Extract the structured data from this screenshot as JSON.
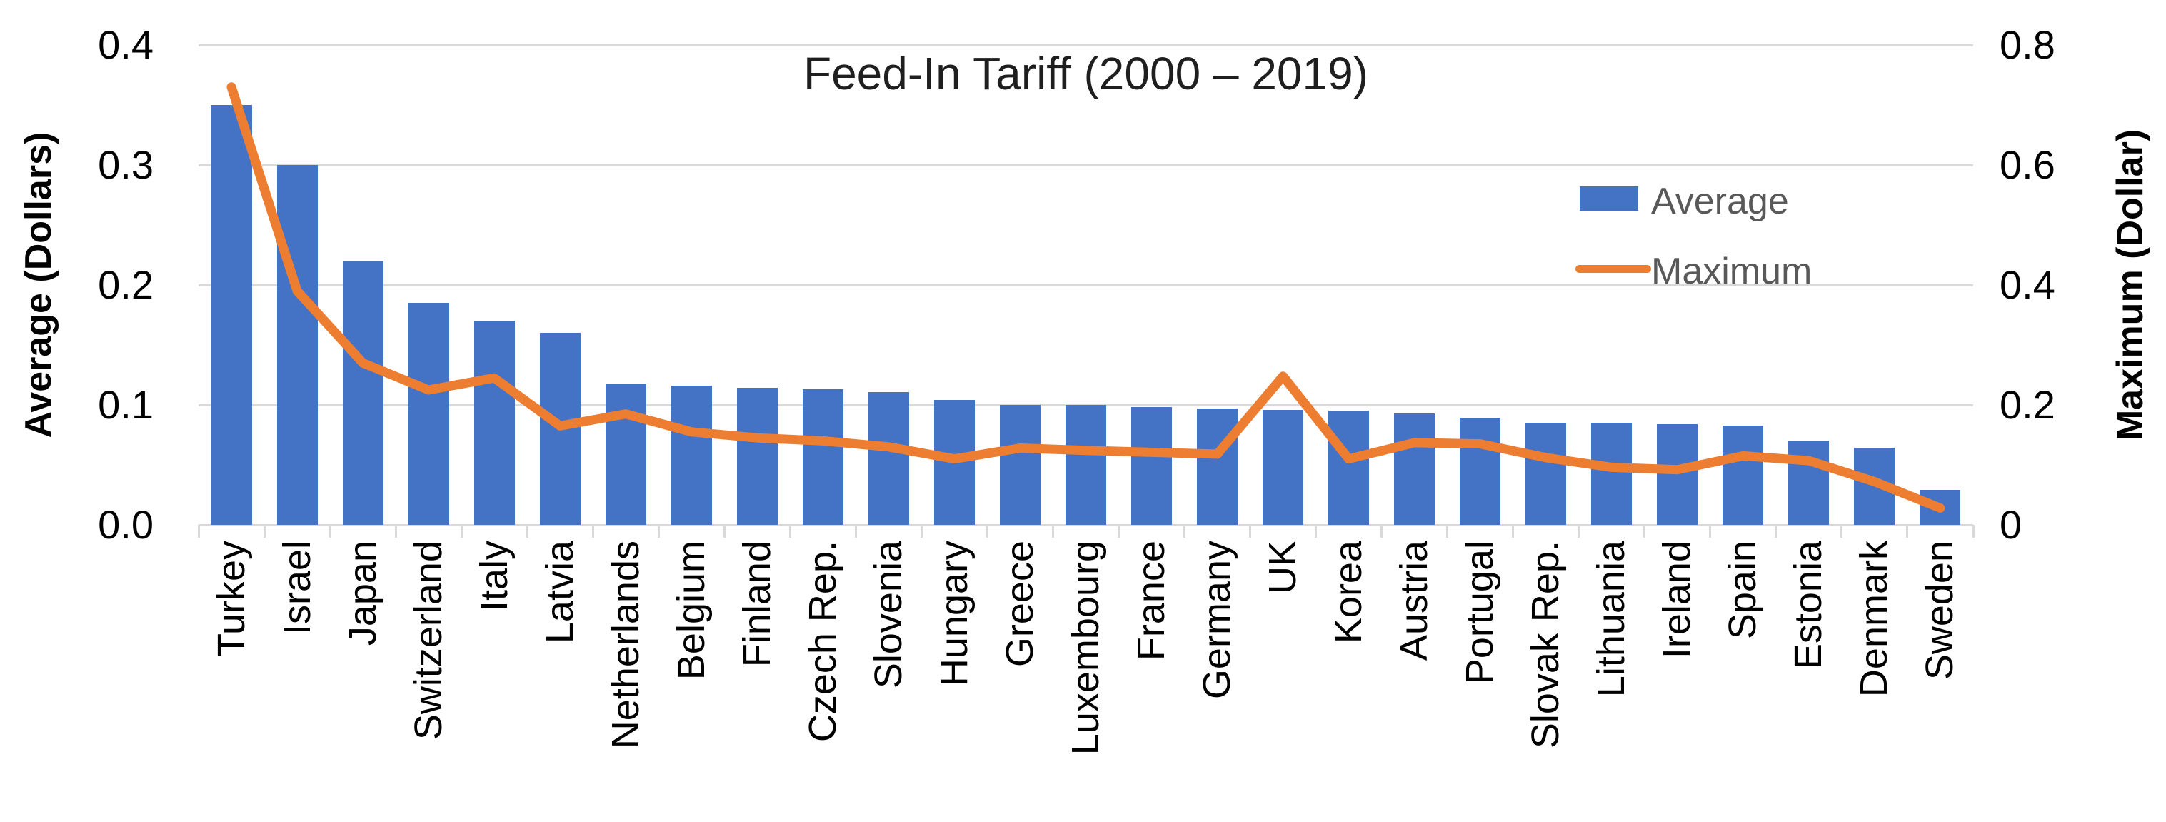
{
  "chart_data": {
    "type": "combo-bar-line",
    "title": "Feed-In Tariff (2000 – 2019)",
    "categories": [
      "Turkey",
      "Israel",
      "Japan",
      "Switzerland",
      "Italy",
      "Latvia",
      "Netherlands",
      "Belgium",
      "Finland",
      "Czech Rep.",
      "Slovenia",
      "Hungary",
      "Greece",
      "Luxembourg",
      "France",
      "Germany",
      "UK",
      "Korea",
      "Austria",
      "Portugal",
      "Slovak Rep.",
      "Lithuania",
      "Ireland",
      "Spain",
      "Estonia",
      "Denmark",
      "Sweden"
    ],
    "series": [
      {
        "name": "Average",
        "type": "bar",
        "y_axis": "left",
        "color": "#4472C4",
        "values": [
          0.35,
          0.3,
          0.22,
          0.185,
          0.17,
          0.16,
          0.118,
          0.116,
          0.114,
          0.113,
          0.111,
          0.104,
          0.1,
          0.1,
          0.098,
          0.097,
          0.096,
          0.095,
          0.093,
          0.089,
          0.085,
          0.085,
          0.084,
          0.083,
          0.07,
          0.064,
          0.029
        ]
      },
      {
        "name": "Maximum",
        "type": "line",
        "y_axis": "right",
        "color": "#ED7D31",
        "values": [
          0.73,
          0.39,
          0.27,
          0.225,
          0.245,
          0.165,
          0.185,
          0.155,
          0.145,
          0.14,
          0.13,
          0.11,
          0.128,
          0.124,
          0.121,
          0.118,
          0.248,
          0.11,
          0.137,
          0.135,
          0.112,
          0.096,
          0.092,
          0.115,
          0.107,
          0.072,
          0.028
        ]
      }
    ],
    "left_axis": {
      "title": "Average (Dollars)",
      "min": 0,
      "max": 0.4,
      "tick_labels": [
        "0.0",
        "0.1",
        "0.2",
        "0.3",
        "0.4"
      ]
    },
    "right_axis": {
      "title": "Maximum (Dollar)",
      "min": 0,
      "max": 0.8,
      "tick_labels": [
        "0",
        "0.2",
        "0.4",
        "0.6",
        "0.8"
      ]
    },
    "legend": {
      "position": "inside-top-right",
      "entries": [
        "Average",
        "Maximum"
      ]
    },
    "grid": true,
    "gridline_color": "#D9D9D9"
  }
}
